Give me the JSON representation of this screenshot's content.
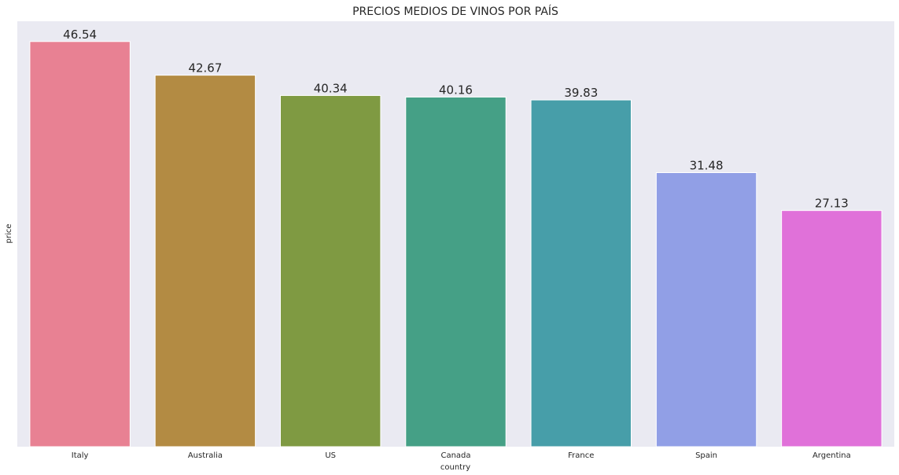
{
  "chart_data": {
    "type": "bar",
    "title": "PRECIOS MEDIOS DE VINOS POR PAÍS",
    "xlabel": "country",
    "ylabel": "price",
    "categories": [
      "Italy",
      "Australia",
      "US",
      "Canada",
      "France",
      "Spain",
      "Argentina"
    ],
    "values": [
      46.54,
      42.67,
      40.34,
      40.16,
      39.83,
      31.48,
      27.13
    ],
    "value_labels": [
      "46.54",
      "42.67",
      "40.34",
      "40.16",
      "39.83",
      "31.48",
      "27.13"
    ],
    "colors": [
      "#e88193",
      "#b38b43",
      "#7f9a42",
      "#45a086",
      "#479ea9",
      "#919fe6",
      "#e071d9"
    ],
    "ylim": [
      0,
      48.87
    ],
    "y_ticks_visible": false,
    "grid": false,
    "background": "#eaeaf2"
  }
}
